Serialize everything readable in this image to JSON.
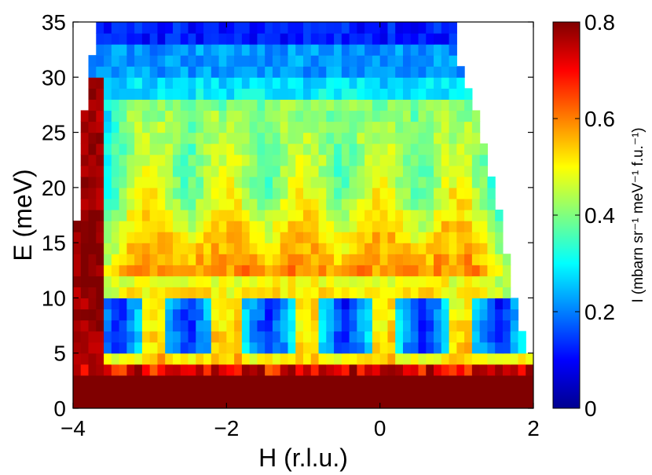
{
  "chart_data": {
    "type": "heatmap",
    "title": "",
    "xlabel": "H (r.l.u.)",
    "ylabel": "E (meV)",
    "xlim": [
      -4,
      2
    ],
    "ylim": [
      0,
      35
    ],
    "x_ticks": [
      -4,
      -2,
      0,
      2
    ],
    "x_tick_labels": [
      "−4",
      "−2",
      "0",
      "2"
    ],
    "y_ticks": [
      0,
      5,
      10,
      15,
      20,
      25,
      30,
      35
    ],
    "y_tick_labels": [
      "0",
      "5",
      "10",
      "15",
      "20",
      "25",
      "30",
      "35"
    ],
    "grid": false,
    "colormap": "jet",
    "colorbar": {
      "label": "I (mbarn sr⁻¹ meV⁻¹ f.u.⁻¹)",
      "range": [
        0,
        0.8
      ],
      "ticks": [
        0,
        0.2,
        0.4,
        0.6,
        0.8
      ],
      "tick_labels": [
        "0",
        "0.2",
        "0.4",
        "0.6",
        "0.8"
      ],
      "colors": [
        "#00008f",
        "#0000ff",
        "#00ffff",
        "#ffff00",
        "#ff0000",
        "#800000"
      ]
    },
    "h_step": 0.1,
    "e_step": 1,
    "coverage": {
      "description": "Measured region bounded by kinematic limits; blank (white) outside",
      "left_edge": [
        [
          0,
          -4.0
        ],
        [
          14,
          -4.0
        ],
        [
          17,
          -3.95
        ],
        [
          22,
          -3.9
        ],
        [
          27,
          -3.85
        ],
        [
          32,
          -3.75
        ],
        [
          35,
          -3.72
        ]
      ],
      "right_edge": [
        [
          0,
          2.0
        ],
        [
          4,
          2.0
        ],
        [
          8,
          1.8
        ],
        [
          12,
          1.7
        ],
        [
          16,
          1.6
        ],
        [
          20,
          1.5
        ],
        [
          24,
          1.35
        ],
        [
          28,
          1.2
        ],
        [
          32,
          1.0
        ],
        [
          35,
          0.95
        ]
      ]
    },
    "features": {
      "elastic_band": {
        "e_range": [
          0,
          3
        ],
        "intensity": 0.8
      },
      "low_energy_pockets": {
        "description": "Low-intensity pockets at roughly 4.5–9 meV between bright dispersive arcs",
        "centers_h": [
          -3.4,
          -2.5,
          -1.45,
          -0.45,
          0.55,
          1.55
        ],
        "intensity": 0.15
      },
      "dispersive_arcs": {
        "description": "Bright V-shaped branches emanating from zone centers",
        "centers_h": [
          -3.0,
          -2.0,
          -1.0,
          0.0,
          1.0
        ],
        "peak_energy": 20,
        "intensity": 0.75
      },
      "high_energy_background": {
        "e_range": [
          30,
          35
        ],
        "intensity": 0.2
      }
    }
  }
}
